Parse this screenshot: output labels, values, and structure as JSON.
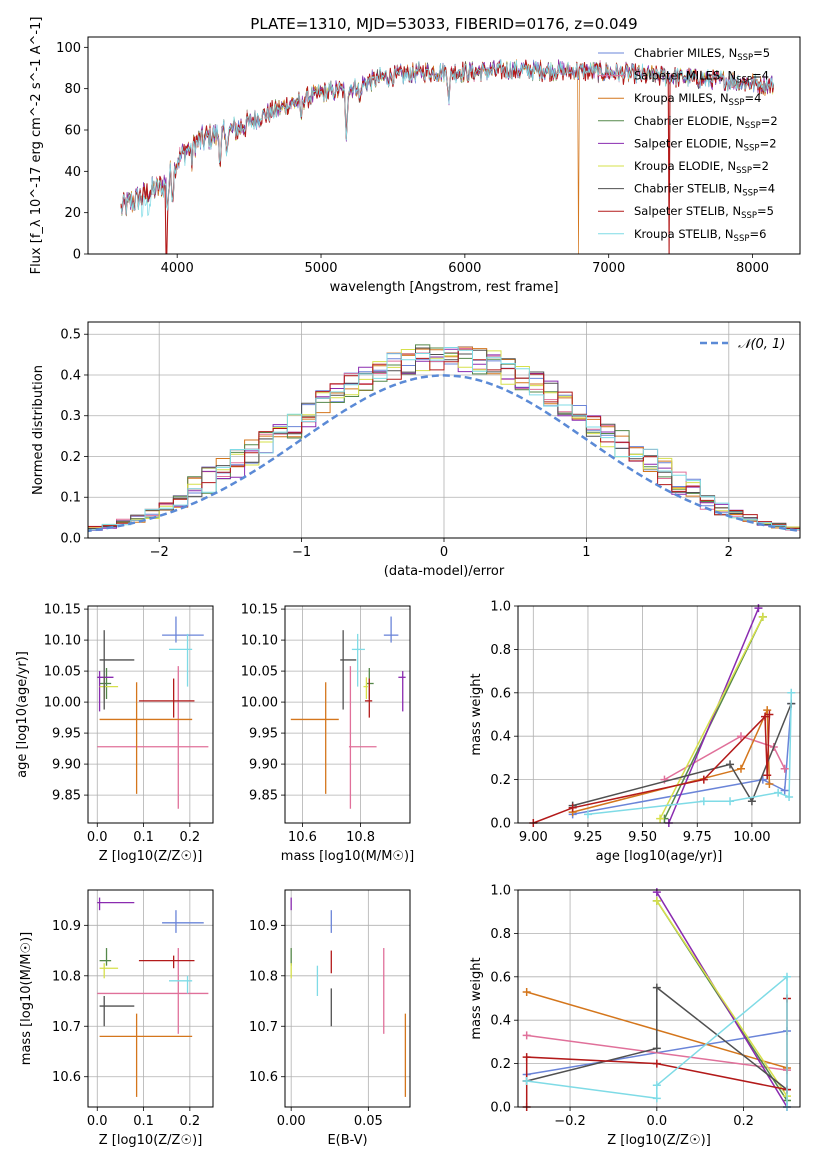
{
  "figure": {
    "title": "PLATE=1310, MJD=53033, FIBERID=0176, z=0.049"
  },
  "models": [
    {
      "label": "Chabrier MILES, N$_{SSP}$=5",
      "legend_text": "Chabrier MILES, N",
      "nssp": "=5",
      "color": "#6a84d8"
    },
    {
      "label": "Salpeter MILES, N$_{SSP}$=4",
      "legend_text": "Salpeter MILES, N",
      "nssp": "=4",
      "color": "#e0709a"
    },
    {
      "label": "Kroupa MILES, N$_{SSP}$=4",
      "legend_text": "Kroupa MILES, N",
      "nssp": "=4",
      "color": "#d4761c"
    },
    {
      "label": "Chabrier ELODIE, N$_{SSP}$=2",
      "legend_text": "Chabrier ELODIE, N",
      "nssp": "=2",
      "color": "#55884a"
    },
    {
      "label": "Salpeter ELODIE, N$_{SSP}$=2",
      "legend_text": "Salpeter ELODIE, N",
      "nssp": "=2",
      "color": "#8a2bb0"
    },
    {
      "label": "Kroupa ELODIE, N$_{SSP}$=2",
      "legend_text": "Kroupa ELODIE, N",
      "nssp": "=2",
      "color": "#d6e04a"
    },
    {
      "label": "Chabrier STELIB, N$_{SSP}$=4",
      "legend_text": "Chabrier STELIB, N",
      "nssp": "=4",
      "color": "#505050"
    },
    {
      "label": "Salpeter STELIB, N$_{SSP}$=5",
      "legend_text": "Salpeter STELIB, N",
      "nssp": "=5",
      "color": "#b31a1a"
    },
    {
      "label": "Kroupa STELIB, N$_{SSP}$=6",
      "legend_text": "Kroupa STELIB, N",
      "nssp": "=6",
      "color": "#7fdbe6"
    }
  ],
  "chart_data": [
    {
      "id": "spectrum",
      "type": "line",
      "xlabel": "wavelength [Angstrom, rest frame]",
      "ylabel": "Flux [f_λ 10^-17 erg cm^-2 s^-1 A^-1]",
      "xlim": [
        3380,
        8330
      ],
      "ylim": [
        0,
        105
      ],
      "xticks": [
        4000,
        5000,
        6000,
        7000,
        8000
      ],
      "yticks": [
        0,
        20,
        40,
        60,
        80,
        100
      ],
      "continuum_anchor_points": [
        [
          3600,
          22
        ],
        [
          3700,
          26
        ],
        [
          3800,
          30
        ],
        [
          3900,
          33
        ],
        [
          4000,
          45
        ],
        [
          4100,
          53
        ],
        [
          4200,
          56
        ],
        [
          4400,
          60
        ],
        [
          4600,
          67
        ],
        [
          4800,
          73
        ],
        [
          5000,
          78
        ],
        [
          5200,
          80
        ],
        [
          5400,
          85
        ],
        [
          5700,
          88
        ],
        [
          6000,
          88
        ],
        [
          6300,
          89
        ],
        [
          6600,
          89
        ],
        [
          7000,
          88
        ],
        [
          7400,
          86
        ],
        [
          7800,
          84
        ],
        [
          8100,
          82
        ]
      ],
      "absorption_features": [
        [
          3934,
          14
        ],
        [
          3969,
          12
        ],
        [
          4102,
          8
        ],
        [
          4300,
          12
        ],
        [
          4340,
          8
        ],
        [
          4861,
          8
        ],
        [
          5175,
          22
        ],
        [
          5270,
          8
        ],
        [
          5890,
          12
        ]
      ],
      "model_dropouts": [
        {
          "model": "Salpeter STELIB, N$_{SSP}$=5",
          "x": 3925
        },
        {
          "model": "Kroupa MILES, N$_{SSP}$=4",
          "x": 6790
        },
        {
          "model": "Salpeter STELIB, N$_{SSP}$=5",
          "x": 7420
        }
      ]
    },
    {
      "id": "residuals",
      "type": "histogram",
      "xlabel": "(data-model)/error",
      "ylabel": "Normed distribution",
      "xlim": [
        -2.5,
        2.5
      ],
      "ylim": [
        0,
        0.53
      ],
      "xticks": [
        -2,
        -1,
        0,
        1,
        2
      ],
      "yticks": [
        0.0,
        0.1,
        0.2,
        0.3,
        0.4,
        0.5
      ],
      "reference_curve": {
        "label": "$\\mathcal{N}(0,1)$",
        "legend_text": "𝒩(0, 1)",
        "color": "#5b8ad6",
        "mean": 0,
        "sigma": 1
      },
      "bin_width": 0.1
    },
    {
      "id": "age_vs_Z",
      "type": "errorbar",
      "xlabel": "Z [log10(Z/Z☉)]",
      "ylabel": "age  [log10(age/yr)]",
      "xlim": [
        -0.02,
        0.25
      ],
      "ylim": [
        9.805,
        10.155
      ],
      "xticks": [
        0.0,
        0.1,
        0.2
      ],
      "yticks": [
        9.85,
        9.9,
        9.95,
        10.0,
        10.05,
        10.1,
        10.15
      ],
      "points": [
        {
          "model": 0,
          "x": 0.17,
          "xerr": [
            0.03,
            0.06
          ],
          "y": 10.108,
          "yerr": [
            0.012,
            0.03
          ]
        },
        {
          "model": 1,
          "x": 0.175,
          "xerr": [
            0.175,
            0.065
          ],
          "y": 9.928,
          "yerr": [
            0.1,
            0.13
          ]
        },
        {
          "model": 2,
          "x": 0.085,
          "xerr": [
            0.08,
            0.12
          ],
          "y": 9.972,
          "yerr": [
            0.12,
            0.06
          ]
        },
        {
          "model": 3,
          "x": 0.02,
          "xerr": [
            0.015,
            0.01
          ],
          "y": 10.03,
          "yerr": [
            0.025,
            0.025
          ]
        },
        {
          "model": 4,
          "x": 0.005,
          "xerr": [
            0.005,
            0.03
          ],
          "y": 10.04,
          "yerr": [
            0.055,
            0.01
          ]
        },
        {
          "model": 5,
          "x": 0.015,
          "xerr": [
            0.01,
            0.03
          ],
          "y": 10.025,
          "yerr": [
            0.02,
            0.015
          ]
        },
        {
          "model": 6,
          "x": 0.015,
          "xerr": [
            0.01,
            0.065
          ],
          "y": 10.068,
          "yerr": [
            0.08,
            0.048
          ]
        },
        {
          "model": 7,
          "x": 0.165,
          "xerr": [
            0.075,
            0.045
          ],
          "y": 10.002,
          "yerr": [
            0.027,
            0.036
          ]
        },
        {
          "model": 8,
          "x": 0.195,
          "xerr": [
            0.04,
            0.01
          ],
          "y": 10.085,
          "yerr": [
            0.06,
            0.025
          ]
        }
      ]
    },
    {
      "id": "age_vs_mass",
      "type": "errorbar",
      "xlabel": "mass [log10(M/M☉)]",
      "ylabel": "",
      "xlim": [
        10.54,
        10.97
      ],
      "ylim": [
        9.805,
        10.155
      ],
      "xticks": [
        10.6,
        10.8
      ],
      "yticks": [
        9.85,
        9.9,
        9.95,
        10.0,
        10.05,
        10.1,
        10.15
      ],
      "points": [
        {
          "model": 0,
          "x": 10.905,
          "xerr": [
            0.025,
            0.025
          ],
          "y": 10.108,
          "yerr": [
            0.012,
            0.03
          ]
        },
        {
          "model": 1,
          "x": 10.765,
          "xerr": [
            0.005,
            0.09
          ],
          "y": 9.928,
          "yerr": [
            0.1,
            0.13
          ]
        },
        {
          "model": 2,
          "x": 10.68,
          "xerr": [
            0.12,
            0.045
          ],
          "y": 9.972,
          "yerr": [
            0.12,
            0.06
          ]
        },
        {
          "model": 3,
          "x": 10.83,
          "xerr": [
            0.01,
            0.015
          ],
          "y": 10.03,
          "yerr": [
            0.025,
            0.025
          ]
        },
        {
          "model": 4,
          "x": 10.945,
          "xerr": [
            0.015,
            0.01
          ],
          "y": 10.04,
          "yerr": [
            0.055,
            0.01
          ]
        },
        {
          "model": 5,
          "x": 10.82,
          "xerr": [
            0.01,
            0.005
          ],
          "y": 10.025,
          "yerr": [
            0.02,
            0.015
          ]
        },
        {
          "model": 6,
          "x": 10.74,
          "xerr": [
            0.01,
            0.045
          ],
          "y": 10.068,
          "yerr": [
            0.08,
            0.048
          ]
        },
        {
          "model": 7,
          "x": 10.83,
          "xerr": [
            0.015,
            0.01
          ],
          "y": 10.002,
          "yerr": [
            0.027,
            0.036
          ]
        },
        {
          "model": 8,
          "x": 10.79,
          "xerr": [
            0.02,
            0.025
          ],
          "y": 10.085,
          "yerr": [
            0.06,
            0.025
          ]
        }
      ]
    },
    {
      "id": "mass_weight_vs_age",
      "type": "line",
      "xlabel": "age  [log10(age/yr)]",
      "ylabel": "mass weight",
      "xlim": [
        8.93,
        10.22
      ],
      "ylim": [
        0,
        1.0
      ],
      "xticks": [
        9.0,
        9.25,
        9.5,
        9.75,
        10.0
      ],
      "yticks": [
        0.0,
        0.2,
        0.4,
        0.6,
        0.8,
        1.0
      ],
      "series": [
        {
          "model": 0,
          "x": [
            9.18,
            10.05,
            10.15,
            10.18
          ],
          "y": [
            0.04,
            0.2,
            0.15,
            0.55
          ]
        },
        {
          "model": 1,
          "x": [
            9.6,
            9.95,
            10.1,
            10.15
          ],
          "y": [
            0.2,
            0.4,
            0.35,
            0.25
          ]
        },
        {
          "model": 2,
          "x": [
            9.18,
            9.95,
            10.07,
            10.08
          ],
          "y": [
            0.05,
            0.25,
            0.52,
            0.18
          ]
        },
        {
          "model": 3,
          "x": [
            9.6,
            10.05
          ],
          "y": [
            0.02,
            0.95
          ]
        },
        {
          "model": 4,
          "x": [
            9.62,
            10.03
          ],
          "y": [
            0.0,
            0.99
          ]
        },
        {
          "model": 5,
          "x": [
            9.58,
            10.05
          ],
          "y": [
            0.02,
            0.95
          ]
        },
        {
          "model": 6,
          "x": [
            9.18,
            9.9,
            10.0,
            10.18
          ],
          "y": [
            0.08,
            0.27,
            0.1,
            0.55
          ]
        },
        {
          "model": 7,
          "x": [
            9.0,
            9.18,
            9.78,
            10.06,
            10.07,
            10.08
          ],
          "y": [
            0.0,
            0.07,
            0.2,
            0.49,
            0.22,
            0.5
          ]
        },
        {
          "model": 8,
          "x": [
            9.25,
            9.78,
            9.9,
            10.12,
            10.17,
            10.18
          ],
          "y": [
            0.04,
            0.1,
            0.1,
            0.14,
            0.12,
            0.6
          ]
        }
      ]
    },
    {
      "id": "mass_vs_Z",
      "type": "errorbar",
      "xlabel": "Z [log10(Z/Z☉)]",
      "ylabel": "mass [log10(M/M☉)]",
      "xlim": [
        -0.02,
        0.25
      ],
      "ylim": [
        10.54,
        10.97
      ],
      "xticks": [
        0.0,
        0.1,
        0.2
      ],
      "yticks": [
        10.6,
        10.7,
        10.8,
        10.9
      ],
      "points": [
        {
          "model": 0,
          "x": 0.17,
          "xerr": [
            0.03,
            0.06
          ],
          "y": 10.905,
          "yerr": [
            0.02,
            0.025
          ]
        },
        {
          "model": 1,
          "x": 0.175,
          "xerr": [
            0.175,
            0.065
          ],
          "y": 10.765,
          "yerr": [
            0.08,
            0.09
          ]
        },
        {
          "model": 2,
          "x": 0.085,
          "xerr": [
            0.08,
            0.12
          ],
          "y": 10.68,
          "yerr": [
            0.12,
            0.045
          ]
        },
        {
          "model": 3,
          "x": 0.02,
          "xerr": [
            0.015,
            0.01
          ],
          "y": 10.83,
          "yerr": [
            0.01,
            0.025
          ]
        },
        {
          "model": 4,
          "x": 0.005,
          "xerr": [
            0.005,
            0.075
          ],
          "y": 10.945,
          "yerr": [
            0.015,
            0.01
          ]
        },
        {
          "model": 5,
          "x": 0.015,
          "xerr": [
            0.01,
            0.03
          ],
          "y": 10.815,
          "yerr": [
            0.02,
            0.01
          ]
        },
        {
          "model": 6,
          "x": 0.015,
          "xerr": [
            0.01,
            0.065
          ],
          "y": 10.74,
          "yerr": [
            0.04,
            0.02
          ]
        },
        {
          "model": 7,
          "x": 0.165,
          "xerr": [
            0.075,
            0.045
          ],
          "y": 10.83,
          "yerr": [
            0.015,
            0.01
          ]
        },
        {
          "model": 8,
          "x": 0.195,
          "xerr": [
            0.04,
            0.01
          ],
          "y": 10.79,
          "yerr": [
            0.025,
            0.01
          ]
        }
      ]
    },
    {
      "id": "mass_vs_EBV",
      "type": "errorbar",
      "xlabel": "E(B-V)",
      "ylabel": "",
      "xlim": [
        -0.004,
        0.077
      ],
      "ylim": [
        10.54,
        10.97
      ],
      "xticks": [
        0.0,
        0.05
      ],
      "yticks": [
        10.6,
        10.7,
        10.8,
        10.9
      ],
      "points": [
        {
          "model": 0,
          "x": 0.026,
          "y": 10.905,
          "yerr": [
            0.02,
            0.025
          ]
        },
        {
          "model": 1,
          "x": 0.06,
          "y": 10.765,
          "yerr": [
            0.08,
            0.09
          ]
        },
        {
          "model": 2,
          "x": 0.074,
          "y": 10.68,
          "yerr": [
            0.12,
            0.045
          ]
        },
        {
          "model": 3,
          "x": 0.0,
          "y": 10.83,
          "yerr": [
            0.01,
            0.025
          ]
        },
        {
          "model": 4,
          "x": 0.0,
          "y": 10.945,
          "yerr": [
            0.015,
            0.01
          ]
        },
        {
          "model": 5,
          "x": 0.0,
          "y": 10.815,
          "yerr": [
            0.02,
            0.01
          ]
        },
        {
          "model": 6,
          "x": 0.026,
          "y": 10.74,
          "yerr": [
            0.04,
            0.035
          ]
        },
        {
          "model": 7,
          "x": 0.026,
          "y": 10.83,
          "yerr": [
            0.025,
            0.02
          ]
        },
        {
          "model": 8,
          "x": 0.017,
          "y": 10.79,
          "yerr": [
            0.03,
            0.03
          ]
        }
      ]
    },
    {
      "id": "mass_weight_vs_Z",
      "type": "line",
      "xlabel": "Z [log10(Z/Z☉)]",
      "ylabel": "mass weight",
      "xlim": [
        -0.32,
        0.33
      ],
      "ylim": [
        0,
        1.0
      ],
      "xticks": [
        -0.2,
        0.0,
        0.2
      ],
      "yticks": [
        0.0,
        0.2,
        0.4,
        0.6,
        0.8,
        1.0
      ],
      "series": [
        {
          "model": 0,
          "x": [
            -0.3,
            0.3
          ],
          "y": [
            0.15,
            0.35
          ]
        },
        {
          "model": 1,
          "x": [
            -0.3,
            0.3
          ],
          "y": [
            0.33,
            0.17
          ]
        },
        {
          "model": 2,
          "x": [
            -0.3,
            0.3
          ],
          "y": [
            0.53,
            0.18
          ]
        },
        {
          "model": 3,
          "x": [
            0.0,
            0.3
          ],
          "y": [
            0.95,
            0.03
          ]
        },
        {
          "model": 4,
          "x": [
            0.0,
            0.3
          ],
          "y": [
            0.99,
            0.0
          ]
        },
        {
          "model": 5,
          "x": [
            0.0,
            0.3
          ],
          "y": [
            0.95,
            0.05
          ]
        },
        {
          "model": 6,
          "x": [
            -0.3,
            0.0,
            0.0,
            0.3
          ],
          "y": [
            0.12,
            0.27,
            0.55,
            0.08
          ]
        },
        {
          "model": 7,
          "x": [
            -0.3,
            -0.3,
            0.0,
            0.3,
            0.3
          ],
          "y": [
            0.0,
            0.23,
            0.2,
            0.08,
            0.5
          ]
        },
        {
          "model": 8,
          "x": [
            -0.3,
            0.0,
            0.0,
            0.3,
            0.3
          ],
          "y": [
            0.12,
            0.04,
            0.1,
            0.6,
            0.0
          ]
        }
      ]
    }
  ]
}
